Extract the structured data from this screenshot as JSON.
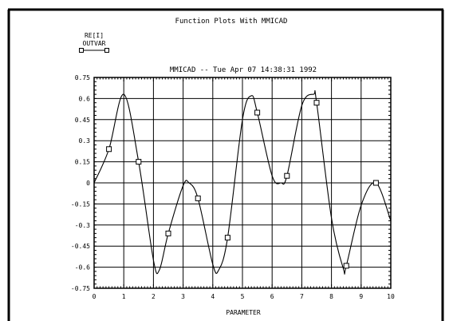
{
  "window": {
    "title": "Function Plots With MMICAD"
  },
  "legend": {
    "labels": [
      "RE[I]",
      "OUTVAR"
    ]
  },
  "chart_data": {
    "type": "line",
    "title": "MMICAD -- Tue Apr 07 14:38:31 1992",
    "xlabel": "PARAMETER",
    "ylabel": "",
    "xlim": [
      0,
      10
    ],
    "ylim": [
      -0.75,
      0.75
    ],
    "x_ticks": [
      "0",
      "1",
      "2",
      "3",
      "4",
      "5",
      "6",
      "7",
      "8",
      "9",
      "10"
    ],
    "y_ticks": [
      "0.75",
      "0.6",
      "0.45",
      "0.3",
      "0.15",
      "0",
      "-0.15",
      "-0.3",
      "-0.45",
      "-0.6",
      "-0.75"
    ],
    "grid": true,
    "series": [
      {
        "name": "RE[I]",
        "marker": "square",
        "curve": {
          "x": [
            0,
            0.5,
            1.0,
            1.5,
            2.0,
            2.2,
            2.5,
            3.0,
            3.2,
            3.5,
            4.0,
            4.2,
            4.5,
            5.0,
            5.3,
            5.5,
            6.0,
            6.3,
            6.5,
            7.0,
            7.4,
            7.5,
            8.0,
            8.4,
            8.5,
            9.0,
            9.5,
            10.0
          ],
          "y": [
            0,
            0.24,
            0.63,
            0.15,
            -0.55,
            -0.62,
            -0.36,
            -0.02,
            0.0,
            -0.11,
            -0.58,
            -0.62,
            -0.39,
            0.45,
            0.62,
            0.5,
            0.05,
            0.0,
            0.05,
            0.55,
            0.63,
            0.57,
            -0.25,
            -0.61,
            -0.59,
            -0.16,
            0.0,
            -0.27
          ]
        },
        "markers": {
          "x": [
            0.5,
            1.5,
            2.5,
            3.5,
            4.5,
            5.5,
            6.5,
            7.5,
            8.5,
            9.5
          ],
          "y": [
            0.24,
            0.15,
            -0.36,
            -0.11,
            -0.39,
            0.5,
            0.05,
            0.57,
            -0.59,
            0.0
          ]
        }
      }
    ]
  }
}
